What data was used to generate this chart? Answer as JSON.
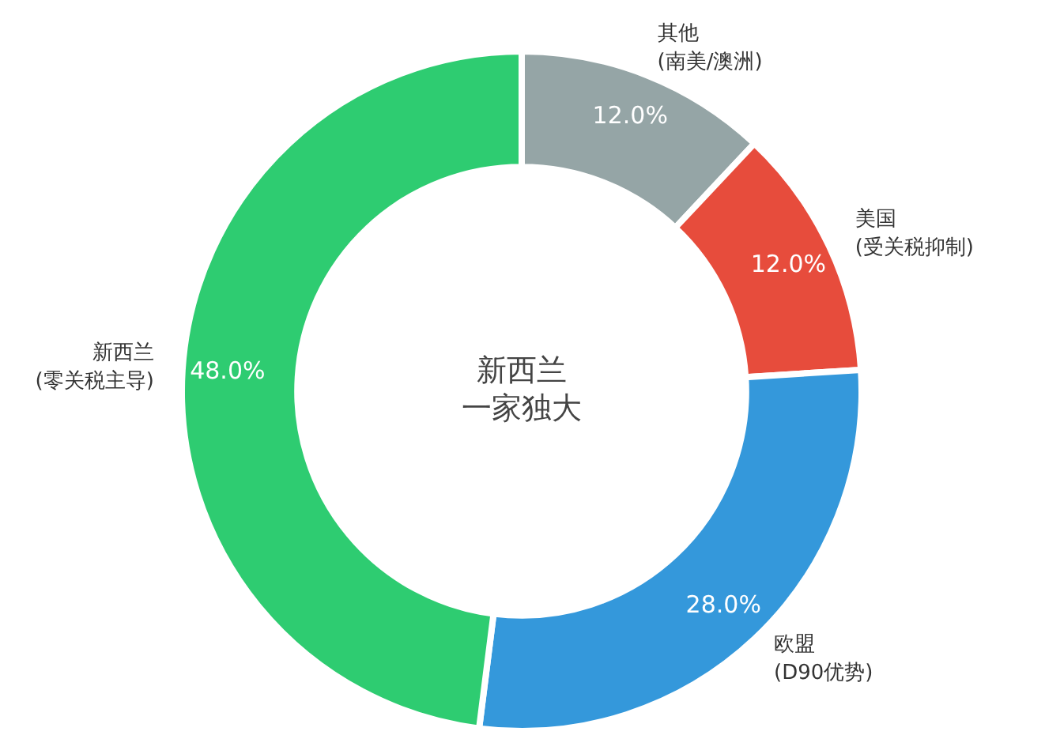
{
  "chart_data": {
    "type": "donut",
    "categories": [
      "其他\n(南美/澳洲)",
      "美国\n(受关税抑制)",
      "欧盟\n(D90优势)",
      "新西兰\n(零关税主导)"
    ],
    "values": [
      12,
      12,
      28,
      48
    ],
    "colors": [
      "#95a5a6",
      "#e74c3c",
      "#3498db",
      "#2ecc71"
    ],
    "value_labels": [
      "12.0%",
      "12.0%",
      "28.0%",
      "48.0%"
    ],
    "annotations": [
      "新西兰",
      "一家独大"
    ],
    "legend": false
  }
}
